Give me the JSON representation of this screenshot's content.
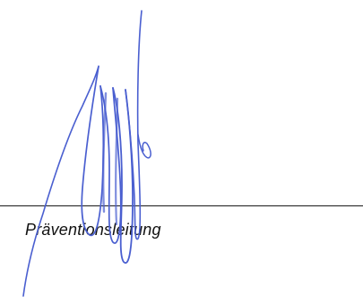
{
  "caption": {
    "role_label": "Präventionsleitung"
  },
  "signature": {
    "ink_color": "#4a5fd0"
  },
  "colors": {
    "rule": "#1a1a1a",
    "text": "#111111",
    "background": "#ffffff"
  }
}
